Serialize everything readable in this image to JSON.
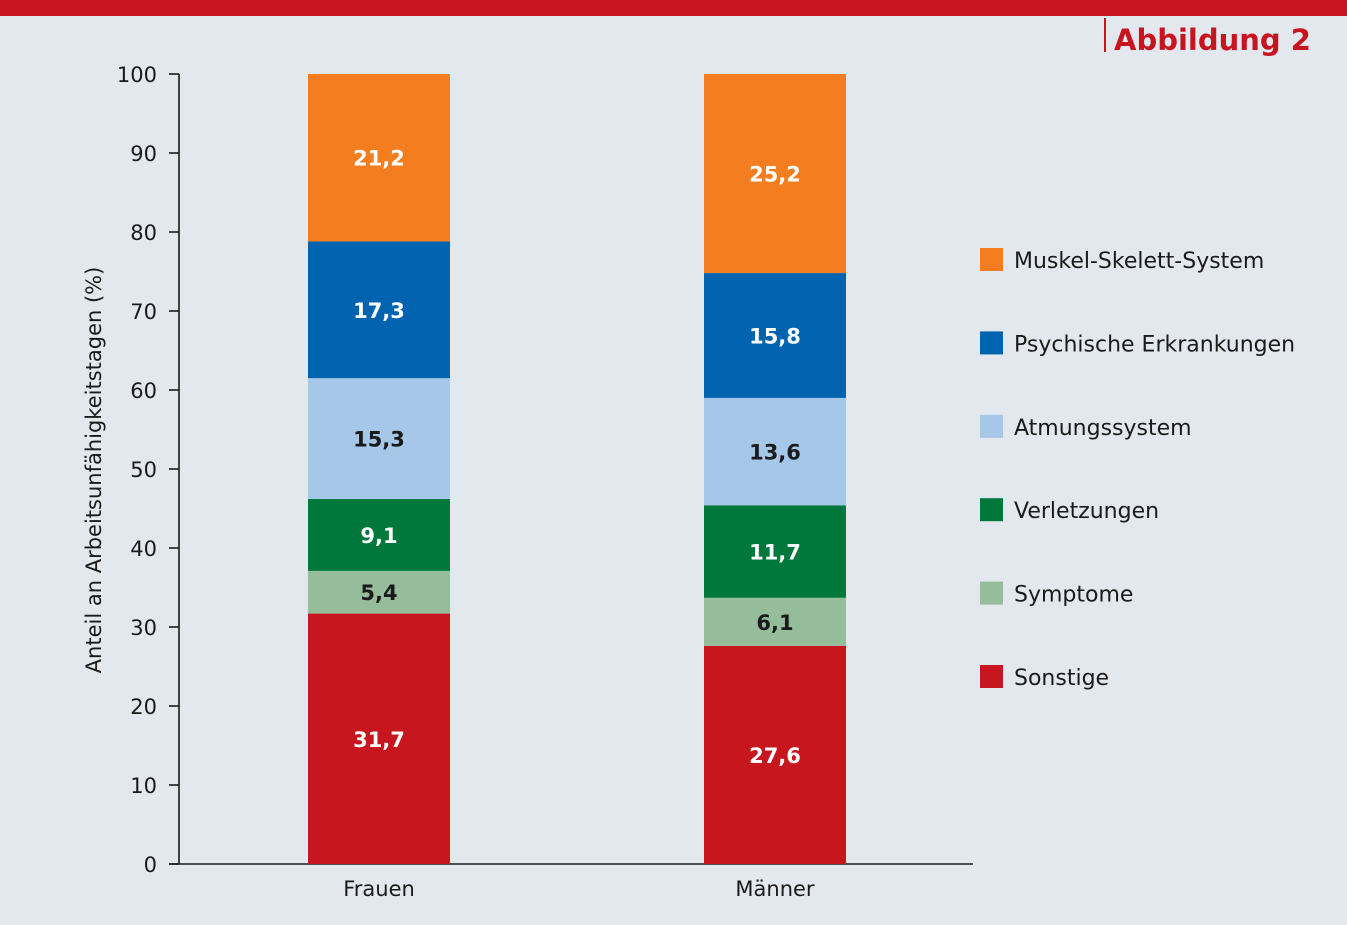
{
  "figure_label": "Abbildung 2",
  "chart_data": {
    "type": "bar",
    "stacked": true,
    "categories": [
      "Frauen",
      "Männer"
    ],
    "series": [
      {
        "name": "Sonstige",
        "values": [
          31.7,
          27.6
        ],
        "labels": [
          "31,7",
          "27,6"
        ],
        "color": "#c8161e",
        "label_color": "#ffffff"
      },
      {
        "name": "Symptome",
        "values": [
          5.4,
          6.1
        ],
        "labels": [
          "5,4",
          "6,1"
        ],
        "color": "#95bc9b",
        "label_color": "#1a1a1a"
      },
      {
        "name": "Verletzungen",
        "values": [
          9.1,
          11.7
        ],
        "labels": [
          "9,1",
          "11,7"
        ],
        "color": "#00773b",
        "label_color": "#ffffff"
      },
      {
        "name": "Atmungssystem",
        "values": [
          15.3,
          13.6
        ],
        "labels": [
          "15,3",
          "13,6"
        ],
        "color": "#a5c8e8",
        "label_color": "#1a1a1a"
      },
      {
        "name": "Psychische Erkrankungen",
        "values": [
          17.3,
          15.8
        ],
        "labels": [
          "17,3",
          "15,8"
        ],
        "color": "#0063b0",
        "label_color": "#ffffff"
      },
      {
        "name": "Muskel-Skelett-System",
        "values": [
          21.2,
          25.2
        ],
        "labels": [
          "21,2",
          "25,2"
        ],
        "color": "#f47d20",
        "label_color": "#ffffff"
      }
    ],
    "legend_order": [
      "Muskel-Skelett-System",
      "Psychische Erkrankungen",
      "Atmungssystem",
      "Verletzungen",
      "Symptome",
      "Sonstige"
    ],
    "title": "",
    "xlabel": "",
    "ylabel": "Anteil an Arbeitsunfähigkeitstagen (%)",
    "ylim": [
      0,
      100
    ],
    "yticks": [
      0,
      10,
      20,
      30,
      40,
      50,
      60,
      70,
      80,
      90,
      100
    ],
    "grid": false,
    "legend_position": "right"
  }
}
